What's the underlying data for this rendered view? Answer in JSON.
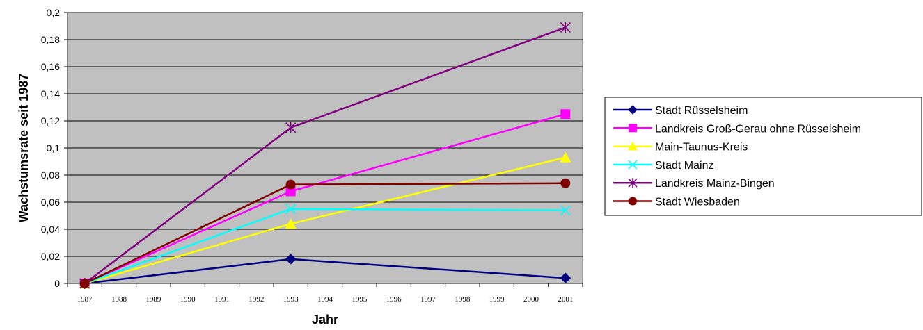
{
  "chart_data": {
    "type": "line",
    "title": "",
    "xlabel": "Jahr",
    "ylabel": "Wachstumsrate seit 1987",
    "x": [
      1987,
      1988,
      1989,
      1990,
      1991,
      1992,
      1993,
      1994,
      1995,
      1996,
      1997,
      1998,
      1999,
      2000,
      2001
    ],
    "ylim": [
      0,
      0.2
    ],
    "yticks": [
      0,
      0.02,
      0.04,
      0.06,
      0.08,
      0.1,
      0.12,
      0.14,
      0.16,
      0.18,
      0.2
    ],
    "ytick_labels": [
      "0",
      "0,02",
      "0,04",
      "0,06",
      "0,08",
      "0,1",
      "0,12",
      "0,14",
      "0,16",
      "0,18",
      "0,2"
    ],
    "grid": true,
    "plot_background": "#c0c0c0",
    "legend_position": "right",
    "series": [
      {
        "name": "Stadt Rüsselsheim",
        "color": "#000080",
        "marker": "diamond",
        "x": [
          1987,
          1993,
          2001
        ],
        "values": [
          0,
          0.018,
          0.004
        ]
      },
      {
        "name": "Landkreis Groß-Gerau ohne Rüsselsheim",
        "color": "#ff00ff",
        "marker": "square",
        "x": [
          1987,
          1993,
          2001
        ],
        "values": [
          0,
          0.068,
          0.125
        ]
      },
      {
        "name": "Main-Taunus-Kreis",
        "color": "#ffff00",
        "marker": "triangle",
        "x": [
          1987,
          1993,
          2001
        ],
        "values": [
          0,
          0.044,
          0.093
        ]
      },
      {
        "name": "Stadt Mainz",
        "color": "#00ffff",
        "marker": "x",
        "x": [
          1987,
          1993,
          2001
        ],
        "values": [
          0,
          0.055,
          0.054
        ]
      },
      {
        "name": "Landkreis Mainz-Bingen",
        "color": "#800080",
        "marker": "star",
        "x": [
          1987,
          1993,
          2001
        ],
        "values": [
          0,
          0.115,
          0.189
        ]
      },
      {
        "name": "Stadt Wiesbaden",
        "color": "#800000",
        "marker": "circle",
        "x": [
          1987,
          1993,
          2001
        ],
        "values": [
          0,
          0.073,
          0.074
        ]
      }
    ]
  }
}
